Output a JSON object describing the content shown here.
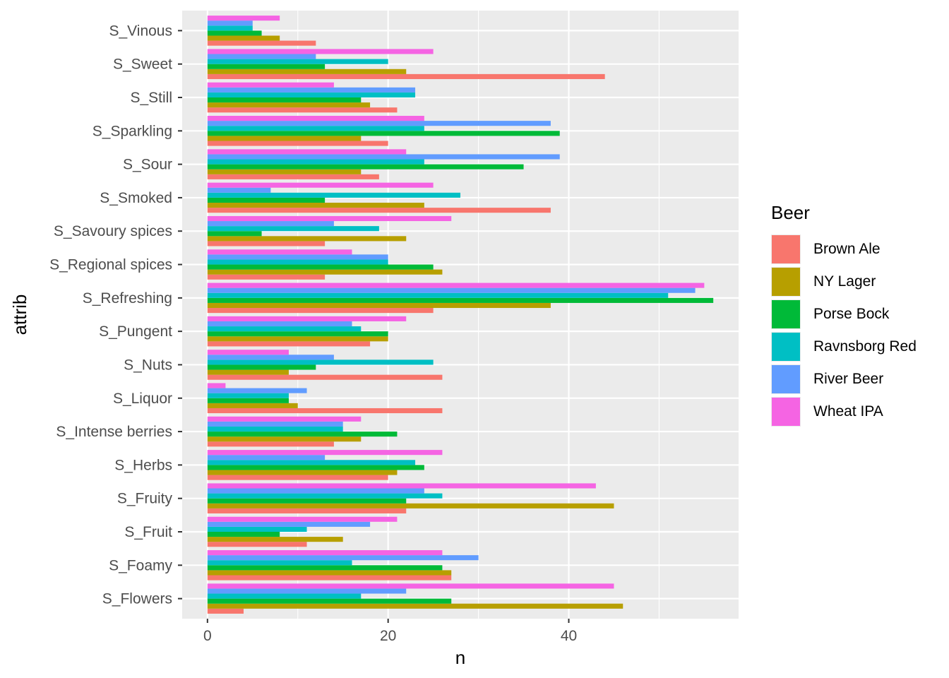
{
  "chart_data": {
    "type": "bar",
    "orientation": "horizontal",
    "position": "dodge",
    "xlabel": "n",
    "ylabel": "attrib",
    "xlim": [
      -2.8,
      58.8
    ],
    "xticks": [
      0,
      20,
      40
    ],
    "grid": true,
    "legend_position": "right",
    "legend_title": "Beer",
    "categories": [
      "S_Flowers",
      "S_Foamy",
      "S_Fruit",
      "S_Fruity",
      "S_Herbs",
      "S_Intense berries",
      "S_Liquor",
      "S_Nuts",
      "S_Pungent",
      "S_Refreshing",
      "S_Regional spices",
      "S_Savoury spices",
      "S_Smoked",
      "S_Sour",
      "S_Sparkling",
      "S_Still",
      "S_Sweet",
      "S_Vinous"
    ],
    "series": [
      {
        "name": "Brown Ale",
        "color": "#F8766D",
        "values": [
          4,
          27,
          11,
          22,
          20,
          14,
          26,
          26,
          18,
          25,
          13,
          13,
          38,
          19,
          20,
          21,
          44,
          12
        ]
      },
      {
        "name": "NY Lager",
        "color": "#B79F00",
        "values": [
          46,
          27,
          15,
          45,
          21,
          17,
          10,
          9,
          20,
          38,
          26,
          22,
          24,
          17,
          17,
          18,
          22,
          8
        ]
      },
      {
        "name": "Porse Bock",
        "color": "#00BA38",
        "values": [
          27,
          26,
          8,
          22,
          24,
          21,
          9,
          12,
          20,
          56,
          25,
          6,
          13,
          35,
          39,
          17,
          13,
          6
        ]
      },
      {
        "name": "Ravnsborg Red",
        "color": "#00BFC4",
        "values": [
          17,
          16,
          11,
          26,
          23,
          15,
          9,
          25,
          17,
          51,
          20,
          19,
          28,
          24,
          24,
          23,
          20,
          5
        ]
      },
      {
        "name": "River Beer",
        "color": "#619CFF",
        "values": [
          22,
          30,
          18,
          24,
          13,
          15,
          11,
          14,
          16,
          54,
          20,
          14,
          7,
          39,
          38,
          23,
          12,
          5
        ]
      },
      {
        "name": "Wheat IPA",
        "color": "#F564E3",
        "values": [
          45,
          26,
          21,
          43,
          26,
          17,
          2,
          9,
          22,
          55,
          16,
          27,
          25,
          22,
          24,
          14,
          25,
          8
        ]
      }
    ]
  }
}
